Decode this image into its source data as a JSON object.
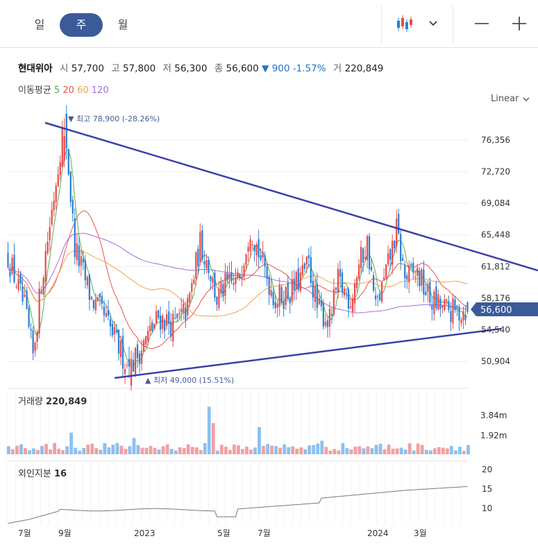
{
  "period_tabs": [
    "일",
    "주",
    "월"
  ],
  "active_tab": "주",
  "summary": {
    "name": "현대위아",
    "open_label": "시",
    "open": "57,700",
    "high_label": "고",
    "high": "57,800",
    "low_label": "저",
    "low": "56,300",
    "close_label": "종",
    "close": "56,600",
    "change": "▼ 900 -1.57%",
    "volume_label": "거",
    "volume": "220,849"
  },
  "ma_legend": {
    "label": "이동평균",
    "p5": "5",
    "p20": "20",
    "p60": "60",
    "p120": "120"
  },
  "scale_mode": "Linear",
  "colors": {
    "up": "#e74c4c",
    "down": "#2a7fd4",
    "ma5": "#4caf50",
    "ma20": "#e8504a",
    "ma60": "#f0a050",
    "ma120": "#a46bd6",
    "trend": "#3a3fa8",
    "accent": "#3b5a9a"
  },
  "chart_data": {
    "type": "candlestick",
    "y_ticks": [
      "76,356",
      "72,720",
      "69,084",
      "65,448",
      "61,812",
      "58,176",
      "54,540",
      "50,904"
    ],
    "ylim": [
      47800,
      80500
    ],
    "current_price": "56,600",
    "high_annotation": "최고 78,900 (-28.26%)",
    "low_annotation": "최저 49,000 (15.51%)",
    "x_labels": [
      "7월",
      "9월",
      "2023",
      "5월",
      "7월",
      "2024",
      "3월"
    ],
    "volume_title": "거래량",
    "volume_value": "220,849",
    "volume_ticks": [
      "3.84m",
      "1.92m"
    ],
    "foreign_title": "외인지분",
    "foreign_value": "16",
    "foreign_ticks": [
      "20",
      "15",
      "10"
    ]
  }
}
